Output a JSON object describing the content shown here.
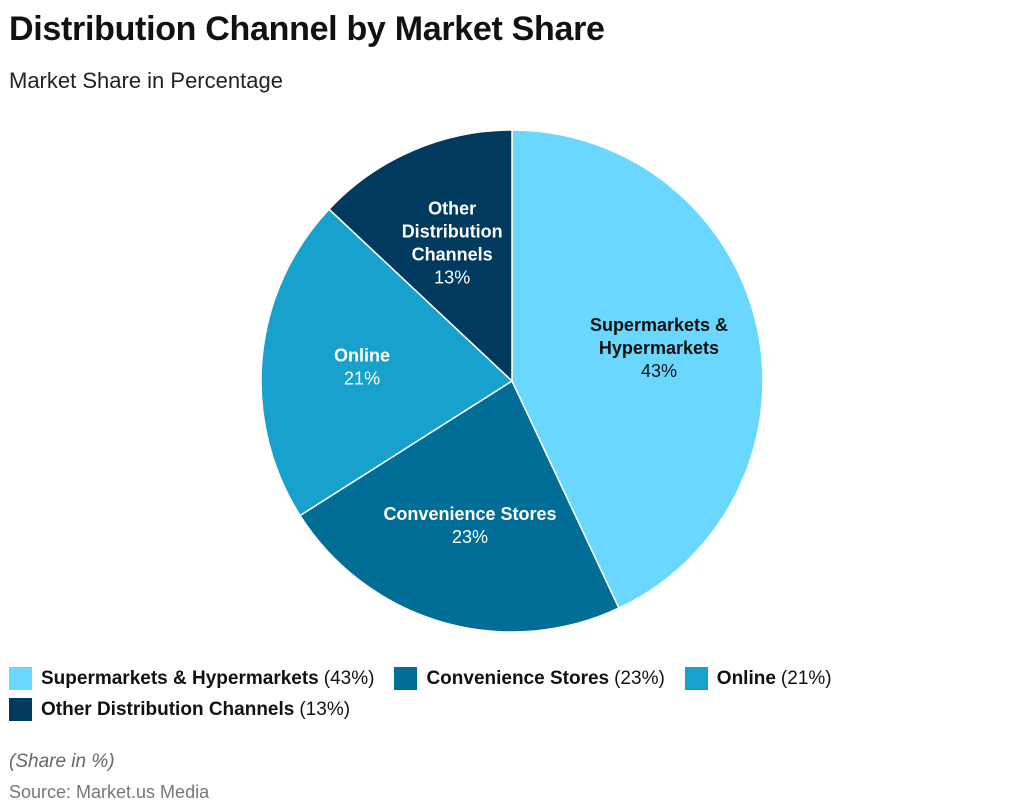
{
  "title": "Distribution Channel by Market Share",
  "subtitle": "Market Share in Percentage",
  "chart_data": {
    "type": "pie",
    "title": "Distribution Channel by Market Share",
    "subtitle": "Market Share in Percentage",
    "start": "top",
    "direction": "clockwise",
    "slices": [
      {
        "label": "Supermarkets & Hypermarkets",
        "label_lines": [
          "Supermarkets &",
          "Hypermarkets"
        ],
        "value": 43,
        "value_label": "43%",
        "legend_value": "(43%)",
        "color": "#69D7FE",
        "text_color": "#111111"
      },
      {
        "label": "Convenience Stores",
        "label_lines": [
          "Convenience Stores"
        ],
        "value": 23,
        "value_label": "23%",
        "legend_value": "(23%)",
        "color": "#006E96",
        "text_color": "#ffffff"
      },
      {
        "label": "Online",
        "label_lines": [
          "Online"
        ],
        "value": 21,
        "value_label": "21%",
        "legend_value": "(21%)",
        "color": "#18A1CD",
        "text_color": "#ffffff"
      },
      {
        "label": "Other Distribution Channels",
        "label_lines": [
          "Other",
          "Distribution",
          "Channels"
        ],
        "value": 13,
        "value_label": "13%",
        "legend_value": "(13%)",
        "color": "#003A5F",
        "text_color": "#ffffff"
      }
    ],
    "legend_position": "bottom-left"
  },
  "note": "(Share in %)",
  "source": "Source: Market.us Media"
}
